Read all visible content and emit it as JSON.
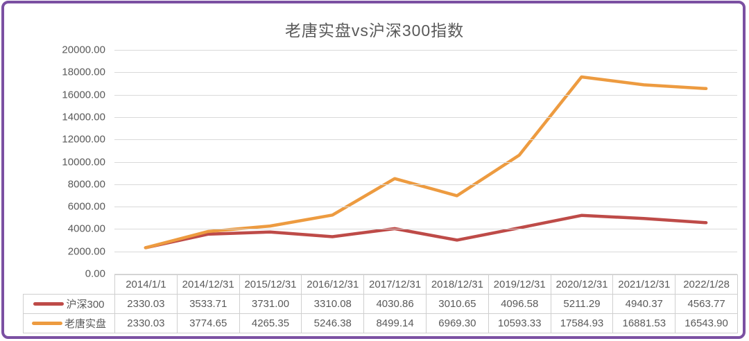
{
  "page": {
    "border_color": "#7B50A2",
    "background": "#FFFFFF",
    "text_color": "#595959",
    "grid_color": "#D9D9D9",
    "table_border_color": "#CFCFCF"
  },
  "chart_data": {
    "type": "line",
    "title": "老唐实盘vs沪深300指数",
    "categories": [
      "2014/1/1",
      "2014/12/31",
      "2015/12/31",
      "2016/12/31",
      "2017/12/31",
      "2018/12/31",
      "2019/12/31",
      "2020/12/31",
      "2021/12/31",
      "2022/1/28"
    ],
    "series": [
      {
        "name": "沪深300",
        "color": "#BE4B48",
        "values": [
          2330.03,
          3533.71,
          3731.0,
          3310.08,
          4030.86,
          3010.65,
          4096.58,
          5211.29,
          4940.37,
          4563.77
        ]
      },
      {
        "name": "老唐实盘",
        "color": "#ED9B40",
        "values": [
          2330.03,
          3774.65,
          4265.35,
          5246.38,
          8499.14,
          6969.3,
          10593.33,
          17584.93,
          16881.53,
          16543.9
        ]
      }
    ],
    "ylim": [
      0,
      20000
    ],
    "y_ticks": [
      "20000.00",
      "18000.00",
      "16000.00",
      "14000.00",
      "12000.00",
      "10000.00",
      "8000.00",
      "6000.00",
      "4000.00",
      "2000.00",
      "0.00"
    ],
    "grid": true,
    "legend_position": "data-table-left",
    "value_format": "two-decimals"
  }
}
